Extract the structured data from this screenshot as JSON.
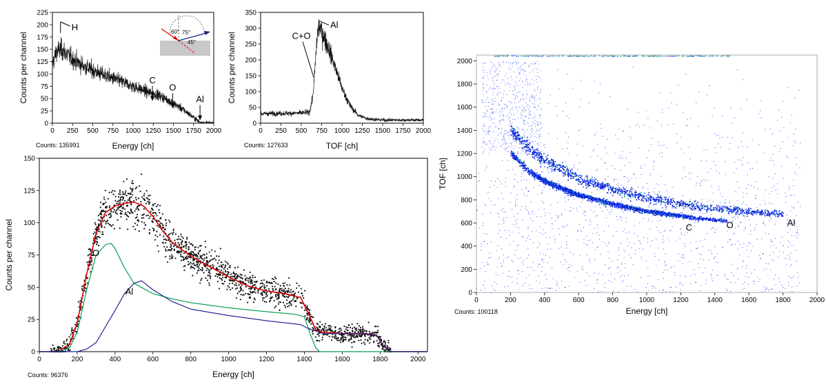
{
  "chart_data": [
    {
      "type": "line",
      "xlabel": "Energy [ch]",
      "ylabel": "Counts per channel",
      "xlim": [
        0,
        2000
      ],
      "ylim": [
        0,
        225
      ],
      "xticks": [
        0,
        250,
        500,
        750,
        1000,
        1250,
        1500,
        1750,
        2000
      ],
      "yticks": [
        0,
        25,
        50,
        75,
        100,
        125,
        150,
        175,
        200,
        225
      ],
      "counts_label": "Counts: 135991",
      "series": [
        {
          "x": [
            0,
            50,
            100,
            150,
            250,
            400,
            600,
            800,
            1000,
            1200,
            1300,
            1400,
            1500,
            1600,
            1700,
            1780,
            1820,
            1860,
            1900,
            2000
          ],
          "values": [
            120,
            145,
            150,
            145,
            130,
            115,
            100,
            88,
            75,
            62,
            58,
            50,
            40,
            30,
            18,
            8,
            3,
            1,
            0,
            0
          ]
        }
      ],
      "annotations": [
        {
          "text": "H",
          "x": 100,
          "y": 200
        },
        {
          "text": "C",
          "x": 1240,
          "y": 45
        },
        {
          "text": "O",
          "x": 1490,
          "y": 30
        },
        {
          "text": "Al",
          "x": 1830,
          "y": 6
        }
      ]
    },
    {
      "type": "line",
      "xlabel": "TOF [ch]",
      "ylabel": "Counts per channel",
      "xlim": [
        0,
        2000
      ],
      "ylim": [
        0,
        350
      ],
      "xticks": [
        0,
        250,
        500,
        750,
        1000,
        1250,
        1500,
        1750,
        2000
      ],
      "yticks": [
        0,
        50,
        100,
        150,
        200,
        250,
        300,
        350
      ],
      "counts_label": "Counts: 127633",
      "series": [
        {
          "x": [
            0,
            500,
            600,
            640,
            660,
            700,
            720,
            750,
            800,
            900,
            1000,
            1100,
            1200,
            1300,
            1400,
            1500,
            2000
          ],
          "values": [
            30,
            32,
            35,
            80,
            140,
            290,
            305,
            290,
            260,
            190,
            110,
            55,
            25,
            15,
            12,
            10,
            10
          ]
        }
      ],
      "annotations": [
        {
          "text": "C+O",
          "x": 670,
          "y": 140
        },
        {
          "text": "Al",
          "x": 720,
          "y": 310
        }
      ]
    },
    {
      "type": "scatter",
      "xlabel": "Energy [ch]",
      "ylabel": "Counts per channel",
      "xlim": [
        0,
        2050
      ],
      "ylim": [
        0,
        150
      ],
      "xticks": [
        0,
        200,
        400,
        600,
        800,
        1000,
        1200,
        1400,
        1600,
        1800,
        2000
      ],
      "yticks": [
        0,
        25,
        50,
        75,
        100,
        125,
        150
      ],
      "counts_label": "Counts: 96376",
      "data_points": {
        "x_from": 60,
        "x_to": 1860,
        "n": 1600
      },
      "series": [
        {
          "color": "#e00000",
          "x": [
            0,
            100,
            160,
            200,
            250,
            300,
            350,
            400,
            450,
            500,
            550,
            600,
            650,
            700,
            800,
            900,
            1000,
            1100,
            1200,
            1300,
            1380,
            1420,
            1460,
            1500,
            1600,
            1700,
            1780,
            1820,
            1860,
            2050
          ],
          "values": [
            0,
            0,
            6,
            22,
            60,
            92,
            108,
            113,
            115,
            116,
            113,
            105,
            94,
            85,
            74,
            66,
            58,
            51,
            47,
            45,
            42,
            30,
            17,
            15,
            14,
            14,
            13,
            4,
            0,
            0
          ]
        },
        {
          "color": "#00a050",
          "x": [
            0,
            100,
            160,
            200,
            250,
            300,
            350,
            380,
            400,
            450,
            500,
            600,
            700,
            800,
            1000,
            1200,
            1350,
            1400,
            1430,
            1460,
            1480,
            2050
          ],
          "values": [
            0,
            0,
            3,
            15,
            48,
            75,
            83,
            84,
            80,
            65,
            53,
            45,
            41,
            38,
            34,
            31,
            29,
            27,
            14,
            3,
            0,
            0
          ]
        },
        {
          "color": "#202090",
          "x": [
            0,
            200,
            250,
            300,
            400,
            450,
            500,
            540,
            600,
            700,
            800,
            1000,
            1200,
            1380,
            1420,
            1500,
            1600,
            1700,
            1780,
            1820,
            1860,
            2050
          ],
          "values": [
            0,
            0,
            2,
            7,
            32,
            45,
            53,
            55,
            48,
            39,
            33,
            28,
            24,
            21,
            18,
            14,
            14,
            14,
            13,
            4,
            0,
            0
          ]
        }
      ],
      "annotations": [
        {
          "text": "O",
          "x": 390,
          "y": 77
        },
        {
          "text": "Al",
          "x": 530,
          "y": 47
        }
      ]
    },
    {
      "type": "heatmap",
      "xlabel": "Energy [ch]",
      "ylabel": "TOF [ch]",
      "xlim": [
        0,
        2000
      ],
      "ylim": [
        0,
        2050
      ],
      "xticks": [
        0,
        200,
        400,
        600,
        800,
        1000,
        1200,
        1400,
        1600,
        1800,
        2000
      ],
      "yticks": [
        0,
        200,
        400,
        600,
        800,
        1000,
        1200,
        1400,
        1600,
        1800,
        2000
      ],
      "counts_label": "Counts: 100118",
      "bands": [
        {
          "name": "Al",
          "x": [
            200,
            300,
            400,
            600,
            800,
            1000,
            1200,
            1400,
            1600,
            1800
          ],
          "values": [
            1410,
            1260,
            1140,
            990,
            890,
            820,
            770,
            730,
            700,
            680
          ]
        },
        {
          "name": "O",
          "x": [
            200,
            300,
            400,
            600,
            800,
            1000,
            1200,
            1400,
            1470
          ],
          "values": [
            1210,
            1060,
            960,
            840,
            760,
            700,
            660,
            630,
            620
          ]
        },
        {
          "name": "C",
          "x": [
            350,
            450,
            600,
            800,
            1000,
            1150,
            1240
          ],
          "values": [
            1010,
            930,
            850,
            770,
            710,
            680,
            660
          ]
        }
      ],
      "annotations": [
        {
          "text": "C",
          "x": 1240,
          "y": 560
        },
        {
          "text": "O",
          "x": 1480,
          "y": 580
        },
        {
          "text": "Al",
          "x": 1840,
          "y": 600
        }
      ]
    }
  ]
}
